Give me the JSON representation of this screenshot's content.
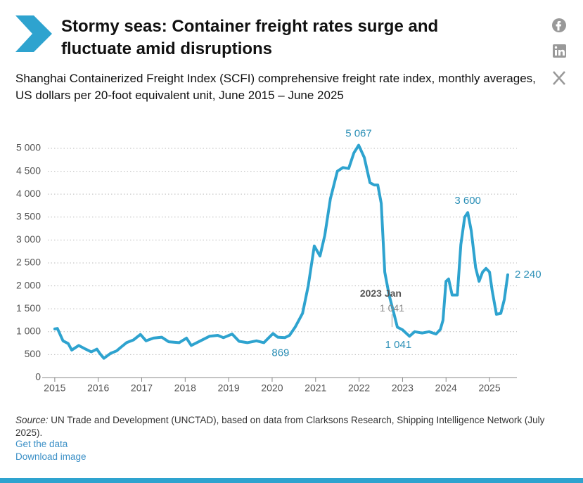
{
  "header": {
    "title": "Stormy seas: Container freight rates surge and fluctuate amid disruptions",
    "subtitle": "Shanghai Containerized Freight Index (SCFI) comprehensive freight rate index, monthly averages, US dollars per 20-foot equivalent unit, June 2015 – June 2025"
  },
  "chart_data": {
    "type": "line",
    "color": "#2ea3cf",
    "grid": true,
    "x": [
      2015.0,
      2015.06,
      2015.19,
      2015.31,
      2015.39,
      2015.55,
      2015.71,
      2015.84,
      2015.97,
      2016.04,
      2016.13,
      2016.29,
      2016.42,
      2016.52,
      2016.65,
      2016.81,
      2016.97,
      2017.1,
      2017.27,
      2017.46,
      2017.62,
      2017.86,
      2018.03,
      2018.14,
      2018.35,
      2018.56,
      2018.75,
      2018.88,
      2019.08,
      2019.24,
      2019.43,
      2019.64,
      2019.81,
      2020.02,
      2020.13,
      2020.29,
      2020.4,
      2020.53,
      2020.7,
      2020.83,
      2020.97,
      2021.1,
      2021.21,
      2021.34,
      2021.5,
      2021.63,
      2021.76,
      2021.88,
      2021.99,
      2022.12,
      2022.25,
      2022.35,
      2022.43,
      2022.51,
      2022.59,
      2022.69,
      2022.8,
      2022.88,
      2023.0,
      2023.16,
      2023.28,
      2023.45,
      2023.61,
      2023.77,
      2023.87,
      2023.93,
      2024.0,
      2024.06,
      2024.14,
      2024.26,
      2024.34,
      2024.43,
      2024.5,
      2024.58,
      2024.68,
      2024.76,
      2024.84,
      2024.92,
      2025.0,
      2025.06,
      2025.16,
      2025.26,
      2025.34,
      2025.42
    ],
    "values": [
      1060,
      1070,
      800,
      740,
      600,
      700,
      620,
      560,
      620,
      520,
      420,
      530,
      580,
      660,
      760,
      820,
      940,
      800,
      860,
      880,
      780,
      760,
      860,
      700,
      800,
      900,
      920,
      870,
      950,
      790,
      760,
      800,
      760,
      960,
      880,
      869,
      920,
      1100,
      1400,
      2000,
      2870,
      2650,
      3100,
      3900,
      4500,
      4580,
      4560,
      4900,
      5067,
      4800,
      4250,
      4200,
      4200,
      3800,
      2300,
      1800,
      1400,
      1100,
      1041,
      900,
      1000,
      970,
      1000,
      950,
      1050,
      1250,
      2100,
      2150,
      1800,
      1800,
      2900,
      3500,
      3600,
      3200,
      2400,
      2100,
      2300,
      2380,
      2300,
      1900,
      1380,
      1400,
      1700,
      2240
    ],
    "value_labels": [
      null,
      null,
      null,
      null,
      null,
      null,
      null,
      null,
      null,
      null,
      null,
      null,
      null,
      null,
      null,
      null,
      null,
      null,
      null,
      null,
      null,
      null,
      null,
      null,
      null,
      null,
      null,
      null,
      null,
      null,
      null,
      null,
      null,
      null,
      null,
      "869",
      null,
      null,
      null,
      null,
      null,
      null,
      null,
      null,
      null,
      null,
      null,
      null,
      "5 067",
      null,
      null,
      null,
      null,
      null,
      null,
      null,
      null,
      null,
      "1 041",
      null,
      null,
      null,
      null,
      null,
      null,
      null,
      null,
      null,
      null,
      null,
      null,
      null,
      "3 600",
      null,
      null,
      null,
      null,
      null,
      null,
      null,
      null,
      null,
      null,
      "2 240"
    ],
    "tooltip": {
      "title": "2023 Jan",
      "value_label": "1 041"
    },
    "xlim": [
      2014.63,
      2025.63
    ],
    "ylim": [
      0,
      5300
    ],
    "xticks": [
      2015,
      2016,
      2017,
      2018,
      2019,
      2020,
      2021,
      2022,
      2023,
      2024,
      2025
    ],
    "yticks": [
      0,
      500,
      {
        "value": 1000,
        "label": "1 000"
      },
      {
        "value": 1500,
        "label": "1 500"
      },
      {
        "value": 2000,
        "label": "2 000"
      },
      {
        "value": 2500,
        "label": "2 500"
      },
      {
        "value": 3000,
        "label": "3 000"
      },
      {
        "value": 3500,
        "label": "3 500"
      },
      {
        "value": 4000,
        "label": "4 000"
      },
      {
        "value": 4500,
        "label": "4 500"
      },
      {
        "value": 5000,
        "label": "5 000"
      }
    ]
  },
  "footer": {
    "source_label": "Source:",
    "source": "UN Trade and Development (UNCTAD), based on data from Clarksons Research, Shipping Intelligence Network (July 2025).",
    "links": [
      "Get the data",
      "Download image"
    ]
  }
}
